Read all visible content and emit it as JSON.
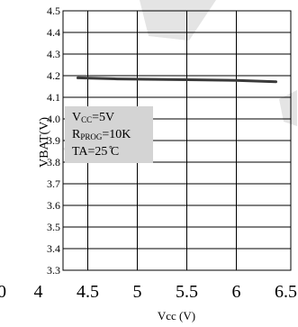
{
  "chart_data": {
    "type": "line",
    "x": [
      4.4,
      4.8,
      5.2,
      5.6,
      6.0,
      6.4
    ],
    "series": [
      {
        "values": [
          4.19,
          4.185,
          4.183,
          4.181,
          4.178,
          4.172
        ]
      }
    ],
    "xlabel": "Vcc (V)",
    "ylabel": "VBAT(V)",
    "xlim": [
      4.25,
      6.55
    ],
    "ylim": [
      3.3,
      4.5
    ],
    "yticks": [
      "3.3",
      "3.4",
      "3.5",
      "3.6",
      "3.7",
      "3.8",
      "3.9",
      "4.0",
      "4.1",
      "4.2",
      "4.3",
      "4.4",
      "4.5"
    ],
    "xticks": [
      "4",
      "4.5",
      "5",
      "5.5",
      "6",
      "6.5"
    ],
    "left_edge_label": "0",
    "grid": true,
    "annotation": {
      "vcc": {
        "main": "V",
        "sub": "CC",
        "rest": "=5V"
      },
      "rprog": {
        "main": "R",
        "sub": "PROG",
        "rest": "=10K"
      },
      "ta": "TA=25 ̊C"
    },
    "colors": {
      "line": "#3a3a3a",
      "grid": "#000000",
      "annotation_bg": "#d4d4d4",
      "watermark": "#d8d8d8"
    }
  }
}
